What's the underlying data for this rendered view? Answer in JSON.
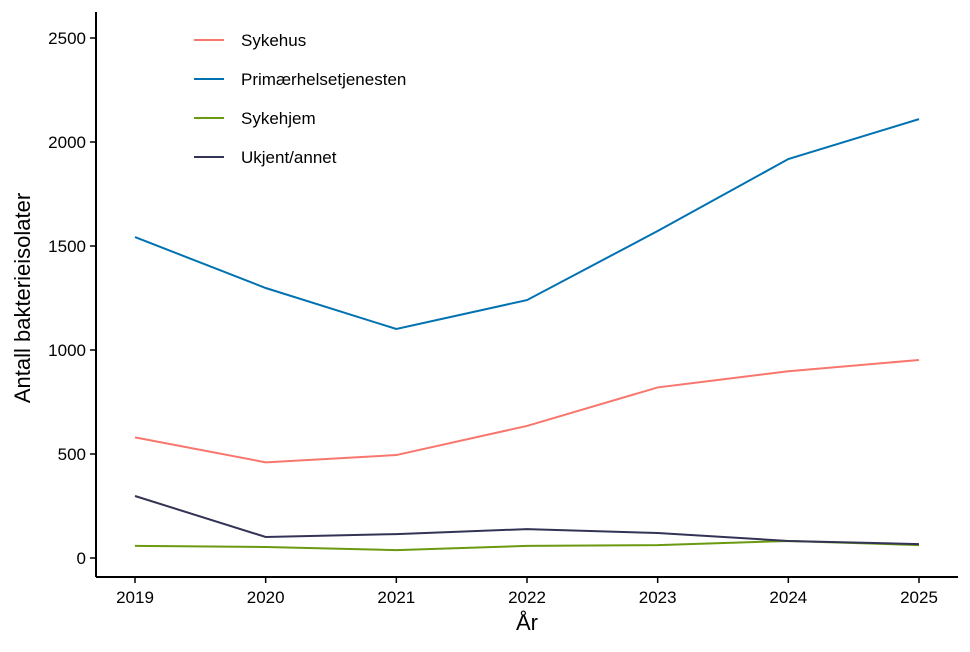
{
  "chart_data": {
    "type": "line",
    "title": "",
    "xlabel": "År",
    "ylabel": "Antall bakterieisolater",
    "x": [
      2019,
      2020,
      2021,
      2022,
      2023,
      2024,
      2025
    ],
    "xticks": [
      "2019",
      "2020",
      "2021",
      "2022",
      "2023",
      "2024",
      "2025"
    ],
    "yticks": [
      "0",
      "500",
      "1000",
      "1500",
      "2000",
      "2500"
    ],
    "ylim": [
      -90,
      2630
    ],
    "grid": false,
    "legend_position": "top-left",
    "series": [
      {
        "name": "Sykehus",
        "color": "#F8766D",
        "values": [
          580,
          460,
          495,
          635,
          820,
          898,
          952
        ]
      },
      {
        "name": "Primærhelsetjenesten",
        "color": "#0072B2",
        "values": [
          1543,
          1298,
          1101,
          1240,
          1572,
          1918,
          2110
        ]
      },
      {
        "name": "Sykehjem",
        "color": "#6B990F",
        "values": [
          58,
          53,
          38,
          58,
          62,
          82,
          62
        ]
      },
      {
        "name": "Ukjent/annet",
        "color": "#333355",
        "values": [
          298,
          101,
          115,
          139,
          120,
          82,
          67
        ]
      }
    ]
  }
}
